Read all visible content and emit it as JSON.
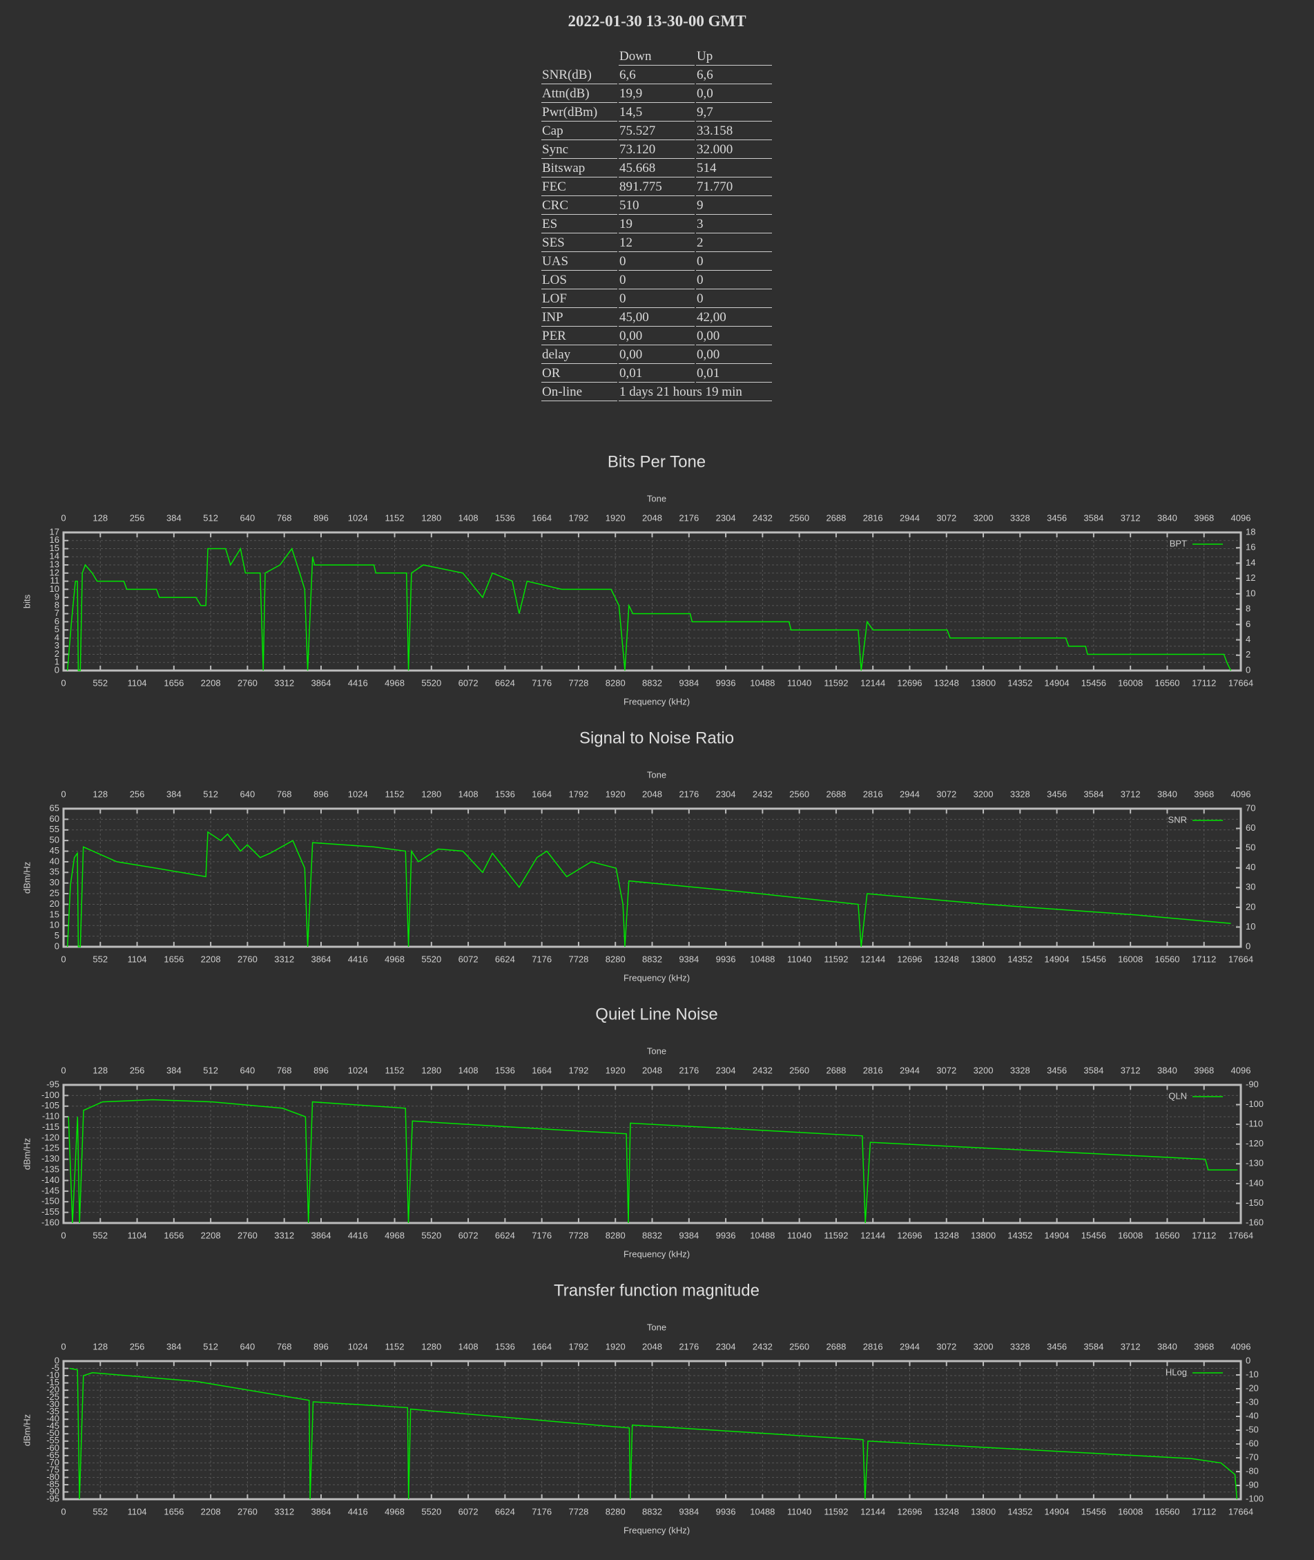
{
  "title": "2022-01-30 13-30-00 GMT",
  "table": {
    "columns": [
      "Down",
      "Up"
    ],
    "rows": [
      [
        "SNR(dB)",
        "6,6",
        "6,6"
      ],
      [
        "Attn(dB)",
        "19,9",
        "0,0"
      ],
      [
        "Pwr(dBm)",
        "14,5",
        "9,7"
      ],
      [
        "Cap",
        "75.527",
        "33.158"
      ],
      [
        "Sync",
        "73.120",
        "32.000"
      ],
      [
        "Bitswap",
        "45.668",
        "514"
      ],
      [
        "FEC",
        "891.775",
        "71.770"
      ],
      [
        "CRC",
        "510",
        "9"
      ],
      [
        "ES",
        "19",
        "3"
      ],
      [
        "SES",
        "12",
        "2"
      ],
      [
        "UAS",
        "0",
        "0"
      ],
      [
        "LOS",
        "0",
        "0"
      ],
      [
        "LOF",
        "0",
        "0"
      ],
      [
        "INP",
        "45,00",
        "42,00"
      ],
      [
        "PER",
        "0,00",
        "0,00"
      ],
      [
        "delay",
        "0,00",
        "0,00"
      ],
      [
        "OR",
        "0,01",
        "0,01"
      ],
      [
        "On-line",
        "1 days 21 hours 19 min",
        "1 days 21 hours 19 min"
      ]
    ]
  },
  "chart_data": [
    {
      "type": "line",
      "title": "Bits Per Tone",
      "x_label": "Frequency (kHz)",
      "x2_label": "Tone",
      "y_label": "bits",
      "grid": true,
      "legend": "upper right",
      "xlim": [
        0,
        17664
      ],
      "xticks": [
        0,
        552,
        1104,
        1656,
        2208,
        2760,
        3312,
        3864,
        4416,
        4968,
        5520,
        6072,
        6624,
        7176,
        7728,
        8280,
        8832,
        9384,
        9936,
        10488,
        11040,
        11592,
        12144,
        12696,
        13248,
        13800,
        14352,
        14904,
        15456,
        16008,
        16560,
        17112,
        17664
      ],
      "x2lim": [
        0,
        4096
      ],
      "x2ticks": [
        0,
        128,
        256,
        384,
        512,
        640,
        768,
        896,
        1024,
        1152,
        1280,
        1408,
        1536,
        1664,
        1792,
        1920,
        2048,
        2176,
        2304,
        2432,
        2560,
        2688,
        2816,
        2944,
        3072,
        3200,
        3328,
        3456,
        3584,
        3712,
        3840,
        3968,
        4096
      ],
      "ylim": [
        0,
        17
      ],
      "yticks": [
        0,
        1,
        2,
        3,
        4,
        5,
        6,
        7,
        8,
        9,
        10,
        11,
        12,
        13,
        14,
        15,
        16,
        17
      ],
      "y2lim": [
        0,
        18
      ],
      "y2ticks": [
        0,
        2,
        4,
        6,
        8,
        10,
        12,
        14,
        16,
        18
      ],
      "x": [
        59,
        119,
        178,
        208,
        222,
        252,
        282,
        326,
        430,
        504,
        905,
        949,
        1394,
        1438,
        1987,
        2061,
        2135,
        2165,
        2432,
        2506,
        2655,
        2729,
        2951,
        2996,
        3025,
        3248,
        3426,
        3544,
        3619,
        3663,
        3737,
        3767,
        4657,
        4686,
        5146,
        5176,
        5220,
        5398,
        5991,
        6288,
        6436,
        6733,
        6837,
        6955,
        7474,
        8216,
        8334,
        8423,
        8483,
        8542,
        9402,
        9432,
        10885,
        10915,
        11923,
        11968,
        12057,
        12146,
        13258,
        13303,
        15038,
        15082,
        15334,
        15364,
        17410,
        17455,
        17514
      ],
      "series": [
        {
          "name": "BPT",
          "color": "#00e600",
          "values": [
            0,
            6,
            11,
            11,
            0,
            0,
            12,
            13,
            12,
            11,
            11,
            10,
            10,
            9,
            9,
            8,
            8,
            15,
            15,
            13,
            15,
            12,
            12,
            0,
            12,
            13,
            15,
            12,
            10,
            0,
            14,
            13,
            13,
            12,
            12,
            0,
            12,
            13,
            12,
            9,
            12,
            11,
            7,
            11,
            10,
            10,
            8,
            0,
            8,
            7,
            7,
            6,
            6,
            5,
            5,
            0,
            6,
            5,
            5,
            4,
            4,
            3,
            3,
            2,
            2,
            1,
            0
          ]
        }
      ]
    },
    {
      "type": "line",
      "title": "Signal to Noise Ratio",
      "x_label": "Frequency (kHz)",
      "x2_label": "Tone",
      "y_label": "dBm/Hz",
      "grid": true,
      "legend": "upper right",
      "xlim": [
        0,
        17664
      ],
      "xticks": [
        0,
        552,
        1104,
        1656,
        2208,
        2760,
        3312,
        3864,
        4416,
        4968,
        5520,
        6072,
        6624,
        7176,
        7728,
        8280,
        8832,
        9384,
        9936,
        10488,
        11040,
        11592,
        12144,
        12696,
        13248,
        13800,
        14352,
        14904,
        15456,
        16008,
        16560,
        17112,
        17664
      ],
      "x2lim": [
        0,
        4096
      ],
      "x2ticks": [
        0,
        128,
        256,
        384,
        512,
        640,
        768,
        896,
        1024,
        1152,
        1280,
        1408,
        1536,
        1664,
        1792,
        1920,
        2048,
        2176,
        2304,
        2432,
        2560,
        2688,
        2816,
        2944,
        3072,
        3200,
        3328,
        3456,
        3584,
        3712,
        3840,
        3968,
        4096
      ],
      "ylim": [
        0,
        65
      ],
      "yticks": [
        0,
        5,
        10,
        15,
        20,
        25,
        30,
        35,
        40,
        45,
        50,
        55,
        60,
        65
      ],
      "y2lim": [
        0,
        70
      ],
      "y2ticks": [
        0,
        10,
        20,
        30,
        40,
        50,
        60,
        70
      ],
      "x": [
        59,
        104,
        163,
        208,
        222,
        252,
        297,
        801,
        1394,
        2135,
        2165,
        2358,
        2462,
        2655,
        2758,
        2951,
        3099,
        3441,
        3619,
        3663,
        3737,
        4657,
        5131,
        5176,
        5220,
        5324,
        5621,
        5991,
        6288,
        6436,
        6837,
        7104,
        7252,
        7549,
        7919,
        8290,
        8394,
        8423,
        8483,
        10292,
        11923,
        11968,
        12057,
        13851,
        16076,
        17514
      ],
      "series": [
        {
          "name": "SNR",
          "color": "#00e600",
          "values": [
            0,
            29,
            42,
            44,
            0,
            0,
            47,
            40,
            37,
            33,
            54,
            50,
            53,
            45,
            48,
            42,
            44,
            50,
            37,
            0,
            49,
            47,
            45,
            0,
            45,
            40,
            46,
            45,
            35,
            44,
            28,
            42,
            45,
            33,
            40,
            37,
            20,
            0,
            31,
            25.5,
            20,
            0,
            25,
            20,
            15,
            11
          ]
        }
      ]
    },
    {
      "type": "line",
      "title": "Quiet Line Noise",
      "x_label": "Frequency (kHz)",
      "x2_label": "Tone",
      "y_label": "dBm/Hz",
      "grid": true,
      "legend": "upper right",
      "xlim": [
        0,
        17664
      ],
      "xticks": [
        0,
        552,
        1104,
        1656,
        2208,
        2760,
        3312,
        3864,
        4416,
        4968,
        5520,
        6072,
        6624,
        7176,
        7728,
        8280,
        8832,
        9384,
        9936,
        10488,
        11040,
        11592,
        12144,
        12696,
        13248,
        13800,
        14352,
        14904,
        15456,
        16008,
        16560,
        17112,
        17664
      ],
      "x2lim": [
        0,
        4096
      ],
      "x2ticks": [
        0,
        128,
        256,
        384,
        512,
        640,
        768,
        896,
        1024,
        1152,
        1280,
        1408,
        1536,
        1664,
        1792,
        1920,
        2048,
        2176,
        2304,
        2432,
        2560,
        2688,
        2816,
        2944,
        3072,
        3200,
        3328,
        3456,
        3584,
        3712,
        3840,
        3968,
        4096
      ],
      "ylim": [
        -160,
        -95
      ],
      "yticks": [
        -160,
        -155,
        -150,
        -145,
        -140,
        -135,
        -130,
        -125,
        -120,
        -115,
        -110,
        -105,
        -100,
        -95
      ],
      "y2lim": [
        -160,
        -90
      ],
      "y2ticks": [
        -160,
        -150,
        -140,
        -130,
        -120,
        -110,
        -100,
        -90
      ],
      "x": [
        75,
        135,
        210,
        240,
        300,
        585,
        1335,
        2235,
        3285,
        3630,
        3675,
        3735,
        5130,
        5175,
        5235,
        7335,
        8445,
        8475,
        8505,
        11985,
        12030,
        12105,
        17130,
        17175,
        17610
      ],
      "series": [
        {
          "name": "QLN",
          "color": "#00e600",
          "values": [
            -110,
            -160,
            -110,
            -160,
            -107,
            -103,
            -102,
            -103,
            -106,
            -110,
            -160,
            -103,
            -106,
            -160,
            -112,
            -116,
            -118,
            -160,
            -113,
            -119,
            -160,
            -122,
            -130,
            -135,
            -135
          ]
        }
      ]
    },
    {
      "type": "line",
      "title": "Transfer function magnitude",
      "x_label": "Frequency (kHz)",
      "x2_label": "Tone",
      "y_label": "dBm/Hz",
      "grid": true,
      "legend": "upper right",
      "xlim": [
        0,
        17664
      ],
      "xticks": [
        0,
        552,
        1104,
        1656,
        2208,
        2760,
        3312,
        3864,
        4416,
        4968,
        5520,
        6072,
        6624,
        7176,
        7728,
        8280,
        8832,
        9384,
        9936,
        10488,
        11040,
        11592,
        12144,
        12696,
        13248,
        13800,
        14352,
        14904,
        15456,
        16008,
        16560,
        17112,
        17664
      ],
      "x2lim": [
        0,
        4096
      ],
      "x2ticks": [
        0,
        128,
        256,
        384,
        512,
        640,
        768,
        896,
        1024,
        1152,
        1280,
        1408,
        1536,
        1664,
        1792,
        1920,
        2048,
        2176,
        2304,
        2432,
        2560,
        2688,
        2816,
        2944,
        3072,
        3200,
        3328,
        3456,
        3584,
        3712,
        3840,
        3968,
        4096
      ],
      "ylim": [
        -95,
        0
      ],
      "yticks": [
        -95,
        -90,
        -85,
        -80,
        -75,
        -70,
        -65,
        -60,
        -55,
        -50,
        -45,
        -40,
        -35,
        -30,
        -25,
        -20,
        -15,
        -10,
        -5,
        0
      ],
      "y2lim": [
        -100,
        0
      ],
      "y2ticks": [
        -100,
        -90,
        -80,
        -70,
        -60,
        -50,
        -40,
        -30,
        -20,
        -10,
        0
      ],
      "x": [
        90,
        209,
        239,
        298,
        433,
        1999,
        3685,
        3700,
        3745,
        5162,
        5177,
        5207,
        8489,
        8504,
        8534,
        11996,
        12026,
        12070,
        16919,
        17367,
        17576,
        17606
      ],
      "series": [
        {
          "name": "HLog",
          "color": "#00e600",
          "values": [
            -5,
            -6,
            -95,
            -10,
            -8,
            -14,
            -27,
            -95,
            -28,
            -32,
            -95,
            -33,
            -46,
            -95,
            -44,
            -54,
            -95,
            -55,
            -67,
            -70,
            -78,
            -95
          ]
        }
      ]
    }
  ]
}
